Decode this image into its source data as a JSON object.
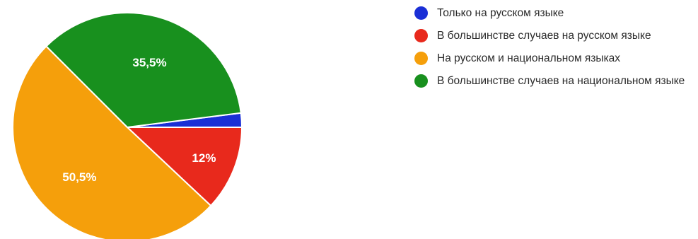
{
  "chart_data": {
    "type": "pie",
    "title": "",
    "slices": [
      {
        "label": "Только на русском языке",
        "value": 2,
        "display": "",
        "color": "#1a2fd6"
      },
      {
        "label": "В большинстве случаев на русском языке",
        "value": 12,
        "display": "12%",
        "color": "#e8291c"
      },
      {
        "label": "На русском и национальном языках",
        "value": 50.5,
        "display": "50,5%",
        "color": "#f59f0b"
      },
      {
        "label": "В большинстве случаев на национальном языке",
        "value": 35.5,
        "display": "35,5%",
        "color": "#18901e"
      }
    ],
    "start_angle_deg": 90,
    "direction": "clockwise",
    "legend_position": "right"
  }
}
